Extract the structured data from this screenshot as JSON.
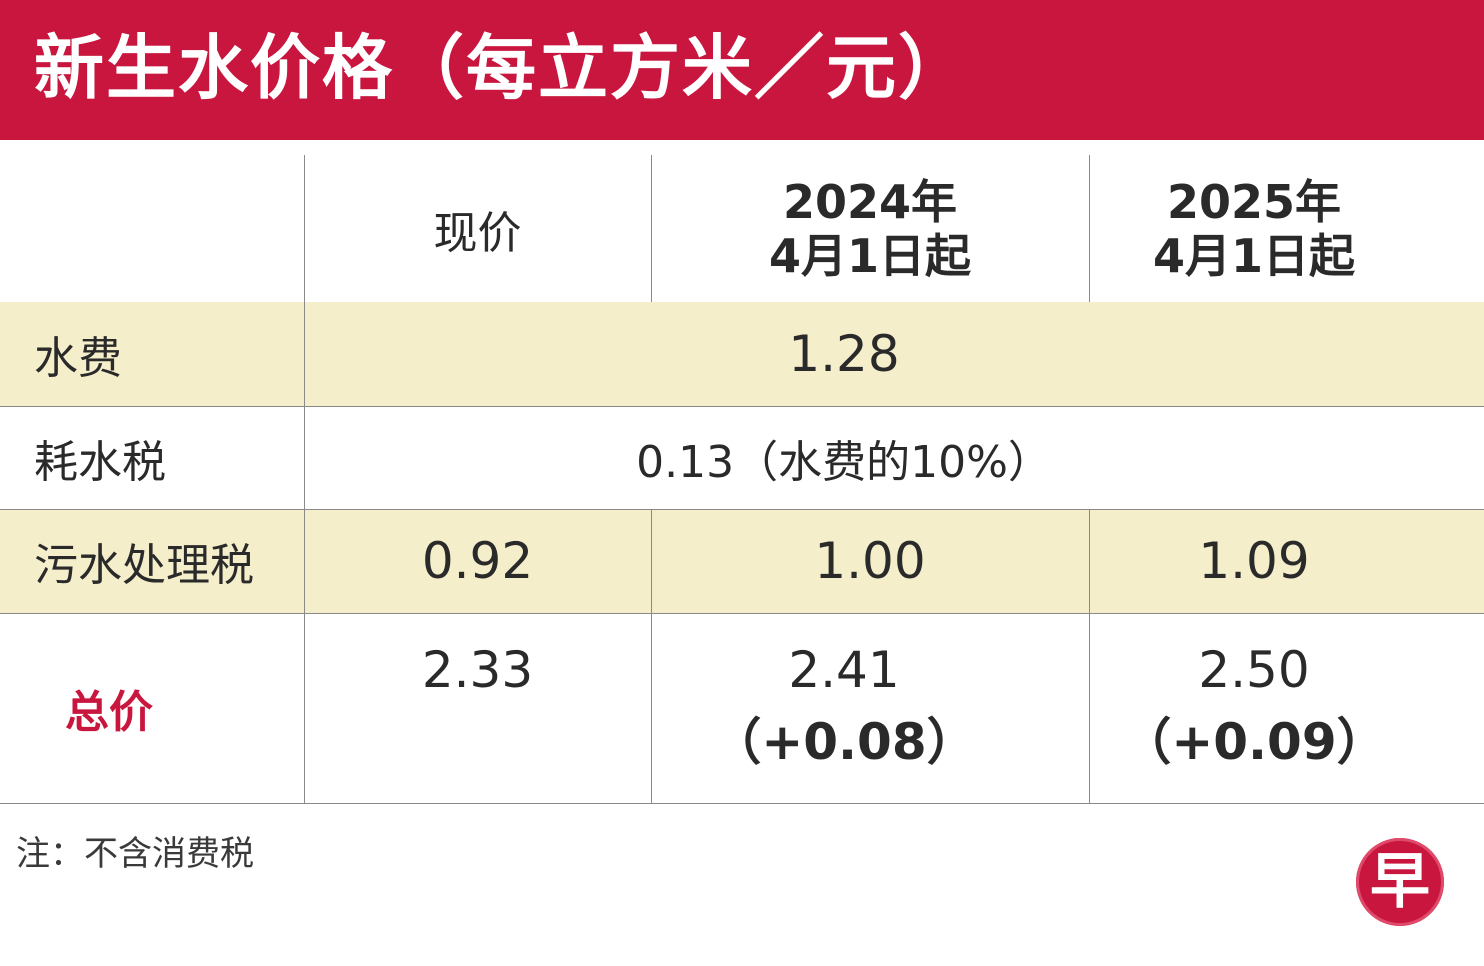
{
  "title": "新生水价格（每立方米／元）",
  "columns": {
    "current": "现价",
    "from_2024_line1": "2024年",
    "from_2024_line2": "4月1日起",
    "from_2025_line1": "2025年",
    "from_2025_line2": "4月1日起"
  },
  "rows": {
    "water_fee": {
      "label": "水费",
      "value": "1.28"
    },
    "water_tax": {
      "label": "耗水税",
      "value": "0.13（水费的10%）"
    },
    "sewage_tax": {
      "label": "污水处理税",
      "current": "0.92",
      "from_2024": "1.00",
      "from_2025": "1.09"
    },
    "total": {
      "label": "总价",
      "current": "2.33",
      "from_2024": "2.41",
      "from_2024_diff": "（+0.08）",
      "from_2025": "2.50",
      "from_2025_diff": "（+0.09）"
    }
  },
  "note": "注：不含消费税",
  "logo": {
    "glyph": "早",
    "color": "#c8163f"
  },
  "colors": {
    "header_bg": "#c8163f",
    "band_bg": "#f5eecb",
    "total_label": "#c8163f"
  }
}
